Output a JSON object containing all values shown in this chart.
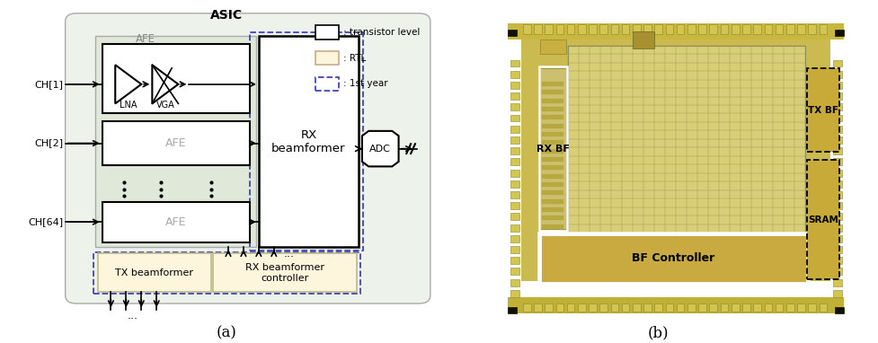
{
  "fig_width": 9.77,
  "fig_height": 3.82,
  "dpi": 100,
  "bg_color": "#ffffff",
  "label_a": "(a)",
  "label_b": "(b)",
  "legend_transistor": ": transistor level",
  "legend_rtl": ": RTL",
  "legend_1st": ": 1st year",
  "asic_title": "ASIC",
  "afe_label": "AFE",
  "lna_label": "LNA",
  "vga_label": "VGA",
  "rx_bf_label": "RX\nbeamformer",
  "adc_label": "ADC",
  "tx_bf_label": "TX beamformer",
  "rx_ctrl_label": "RX beamformer\ncontroller",
  "ch1_label": "CH[1]",
  "ch2_label": "CH[2]",
  "ch64_label": "CH[64]",
  "chip_rx_bf": "RX BF",
  "chip_tx_bf": "TX BF",
  "chip_sram": "SRAM",
  "chip_bf_ctrl": "BF Controller",
  "asic_bg": "#edf2ea",
  "afe_outer_bg": "#e0e8da",
  "rtl_fill": "#fdf5dc",
  "blue_dashed": "#4444bb",
  "chip_outer": "#c8b855",
  "chip_pad_color": "#d4c255",
  "chip_grid_color": "#c8be78",
  "chip_grid_line": "#b8ae60",
  "chip_controller_fill": "#c8a840",
  "chip_tx_fill": "#c8b040",
  "chip_sram_fill": "#c8aa38",
  "chip_rx_strip": "#b8a038"
}
